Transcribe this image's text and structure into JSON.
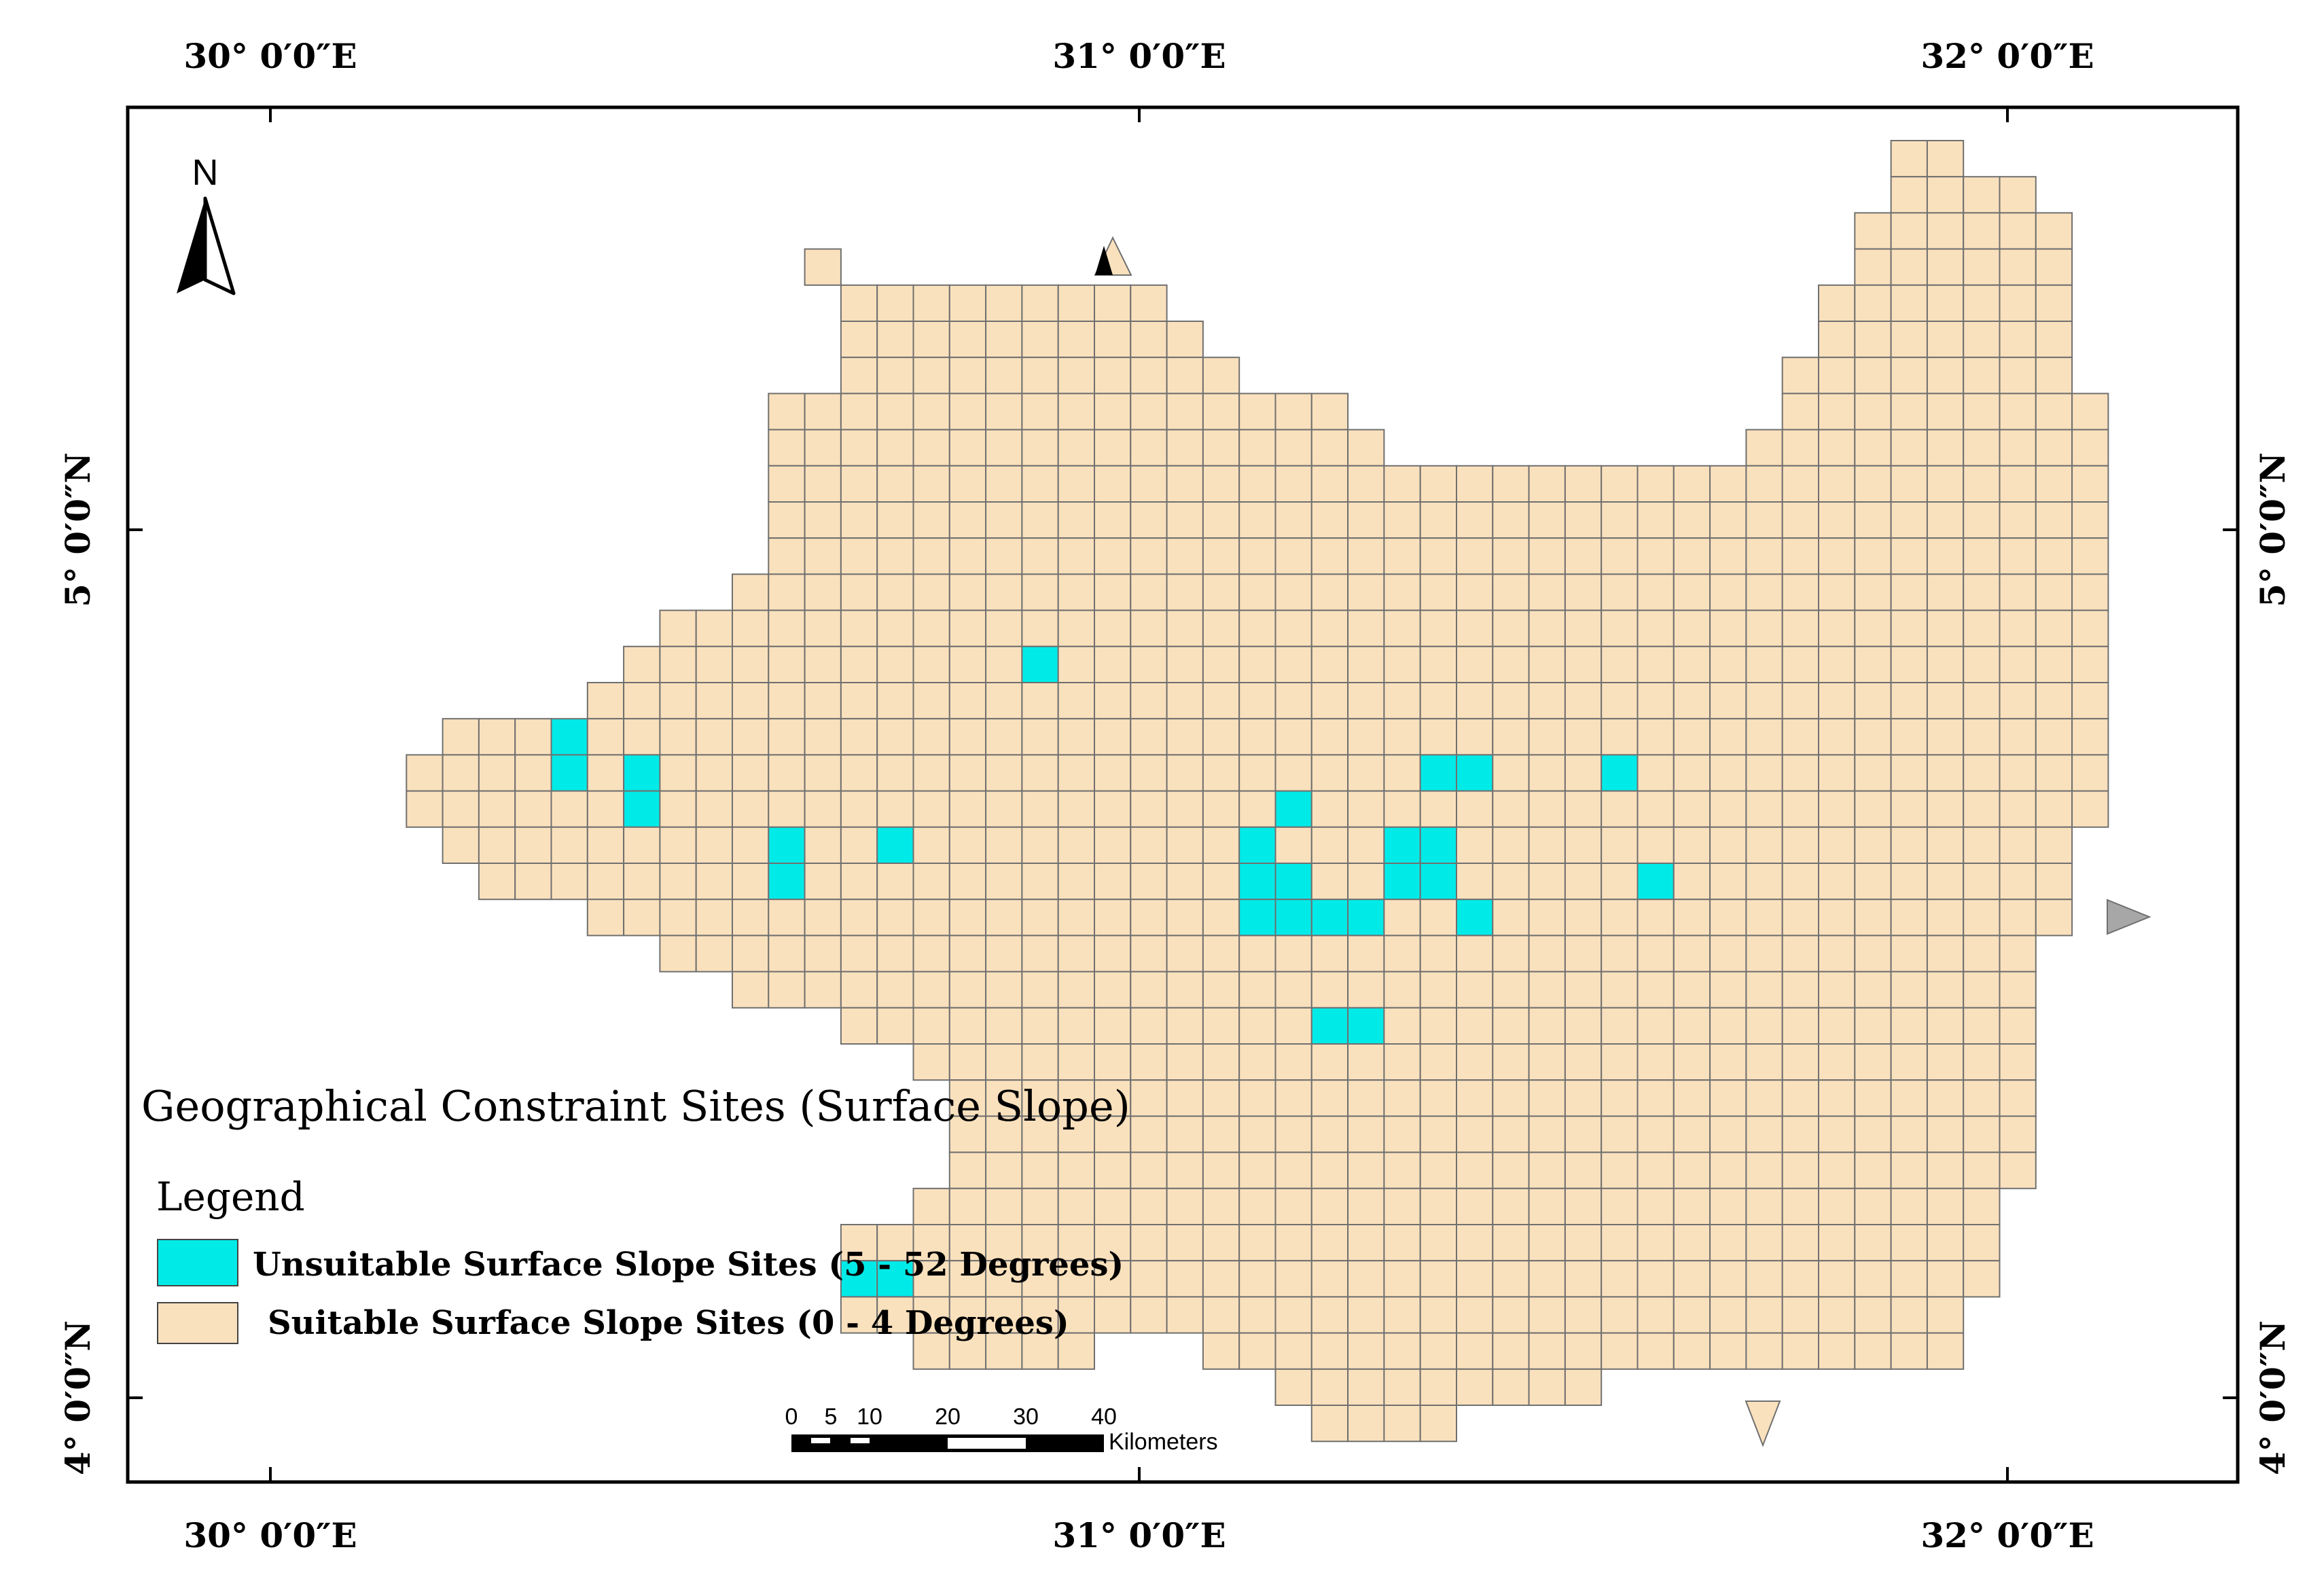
{
  "map": {
    "title": "Geographical Constraint Sites (Surface Slope)",
    "north_arrow_label": "N",
    "longitude_labels": [
      "30° 0′0″E",
      "31° 0′0″E",
      "32° 0′0″E"
    ],
    "latitude_labels": [
      "5° 0′0″N",
      "4° 0′0″N"
    ],
    "colors": {
      "frame": "#000000",
      "suitable": "#fae1bd",
      "unsuitable": "#00ebe8",
      "grid_line": "#707070",
      "arrowhead": "#a7a7a7"
    }
  },
  "legend": {
    "heading": "Legend",
    "items": [
      {
        "label": "Unsuitable Surface Slope Sites (5 - 52 Degrees)",
        "color": "#00ebe8"
      },
      {
        "label": "Suitable Surface Slope Sites (0 - 4 Degrees)",
        "color": "#fae1bd"
      }
    ]
  },
  "scale_bar": {
    "tick_labels": [
      "0",
      "5",
      "10",
      "20",
      "30",
      "40"
    ],
    "unit": "Kilometers"
  }
}
